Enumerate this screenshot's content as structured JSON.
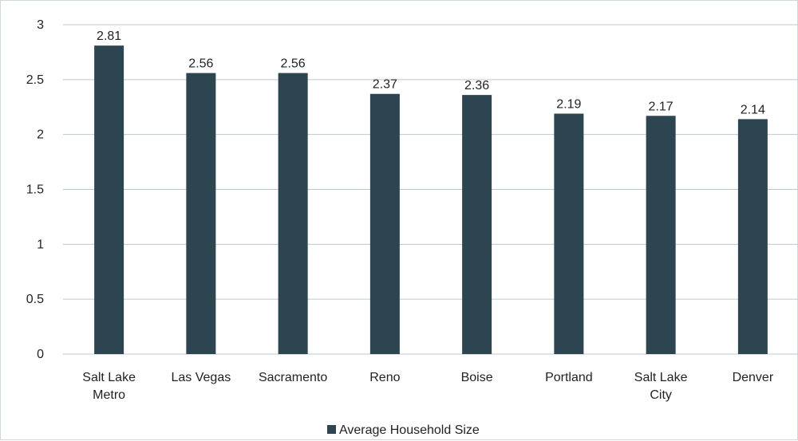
{
  "chart_data": {
    "type": "bar",
    "categories": [
      "Salt Lake Metro",
      "Las Vegas",
      "Sacramento",
      "Reno",
      "Boise",
      "Portland",
      "Salt Lake City",
      "Denver"
    ],
    "category_lines": [
      [
        "Salt Lake",
        "Metro"
      ],
      [
        "Las Vegas"
      ],
      [
        "Sacramento"
      ],
      [
        "Reno"
      ],
      [
        "Boise"
      ],
      [
        "Portland"
      ],
      [
        "Salt Lake",
        "City"
      ],
      [
        "Denver"
      ]
    ],
    "series": [
      {
        "name": "Average Household Size",
        "values": [
          2.81,
          2.56,
          2.56,
          2.37,
          2.36,
          2.19,
          2.17,
          2.14
        ]
      }
    ],
    "data_labels": [
      "2.81",
      "2.56",
      "2.56",
      "2.37",
      "2.36",
      "2.19",
      "2.17",
      "2.14"
    ],
    "y_ticks": [
      "0",
      "0.5",
      "1",
      "1.5",
      "2",
      "2.5",
      "3"
    ],
    "ylim": [
      0,
      3
    ],
    "title": "",
    "xlabel": "",
    "ylabel": "",
    "grid": true,
    "legend_position": "bottom",
    "colors": {
      "bar": "#2c4550",
      "grid": "#b9c9cf",
      "text": "#222222"
    }
  }
}
